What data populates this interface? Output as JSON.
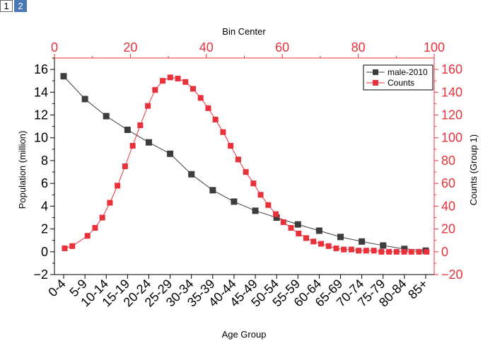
{
  "layer_tabs": [
    {
      "label": "1"
    },
    {
      "label": "2"
    }
  ],
  "chart_data": {
    "type": "line",
    "title": "",
    "x": {
      "label": "Age Group",
      "categories": [
        "0-4",
        "5-9",
        "10-14",
        "15-19",
        "20-24",
        "25-29",
        "30-34",
        "35-39",
        "40-44",
        "45-49",
        "50-54",
        "55-59",
        "60-64",
        "65-69",
        "70-74",
        "75-79",
        "80-84",
        "85+"
      ]
    },
    "x_top": {
      "label": "Bin Center",
      "range": [
        0,
        100
      ],
      "ticks": [
        "0",
        "20",
        "40",
        "60",
        "80",
        "100"
      ]
    },
    "y_left": {
      "label": "Population (million)",
      "range": [
        -2,
        17
      ],
      "ticks": [
        "−2",
        "0",
        "2",
        "4",
        "6",
        "8",
        "10",
        "12",
        "14",
        "16"
      ]
    },
    "y_right": {
      "label": "Counts (Group 1)",
      "range": [
        -20,
        170
      ],
      "ticks": [
        "−20",
        "0",
        "20",
        "40",
        "60",
        "80",
        "100",
        "120",
        "140",
        "160"
      ]
    },
    "series": [
      {
        "name": "male-2010",
        "axis": "left",
        "color": "#3d3d3d",
        "marker": "square",
        "values": [
          15.4,
          13.4,
          11.9,
          10.7,
          9.6,
          8.6,
          6.8,
          5.4,
          4.4,
          3.6,
          3.0,
          2.4,
          1.85,
          1.3,
          0.9,
          0.55,
          0.25,
          0.1
        ]
      },
      {
        "name": "Counts",
        "axis": "right",
        "color": "#e8313a",
        "marker": "square",
        "x_axis": "top",
        "points": [
          [
            2.7,
            3
          ],
          [
            4.7,
            5
          ],
          [
            8.7,
            14
          ],
          [
            10.7,
            21
          ],
          [
            12.6,
            30
          ],
          [
            14.6,
            43
          ],
          [
            16.6,
            58
          ],
          [
            18.6,
            75
          ],
          [
            20.6,
            93
          ],
          [
            22.6,
            111
          ],
          [
            24.6,
            128
          ],
          [
            26.5,
            142
          ],
          [
            28.5,
            150
          ],
          [
            30.5,
            153
          ],
          [
            32.5,
            152
          ],
          [
            34.5,
            149
          ],
          [
            36.5,
            143
          ],
          [
            38.5,
            135
          ],
          [
            40.5,
            126
          ],
          [
            42.4,
            116
          ],
          [
            44.4,
            105
          ],
          [
            46.4,
            93
          ],
          [
            48.4,
            81
          ],
          [
            50.4,
            70
          ],
          [
            52.4,
            60
          ],
          [
            54.3,
            50
          ],
          [
            56.3,
            41
          ],
          [
            58.3,
            33
          ],
          [
            60.3,
            26
          ],
          [
            62.3,
            21
          ],
          [
            64.3,
            16
          ],
          [
            66.3,
            12
          ],
          [
            68.2,
            9
          ],
          [
            70.2,
            7
          ],
          [
            72.2,
            5
          ],
          [
            74.2,
            3
          ],
          [
            76.2,
            2
          ],
          [
            78.2,
            2
          ],
          [
            80.1,
            1
          ],
          [
            82.1,
            1
          ],
          [
            84.1,
            1
          ],
          [
            86.1,
            0
          ],
          [
            88.1,
            0
          ],
          [
            90.1,
            0
          ],
          [
            92.1,
            0
          ],
          [
            94.0,
            0
          ],
          [
            96.0,
            0
          ],
          [
            98.0,
            0
          ]
        ]
      }
    ],
    "legend": {
      "position": "top-right",
      "entries": [
        "male-2010",
        "Counts"
      ]
    }
  }
}
